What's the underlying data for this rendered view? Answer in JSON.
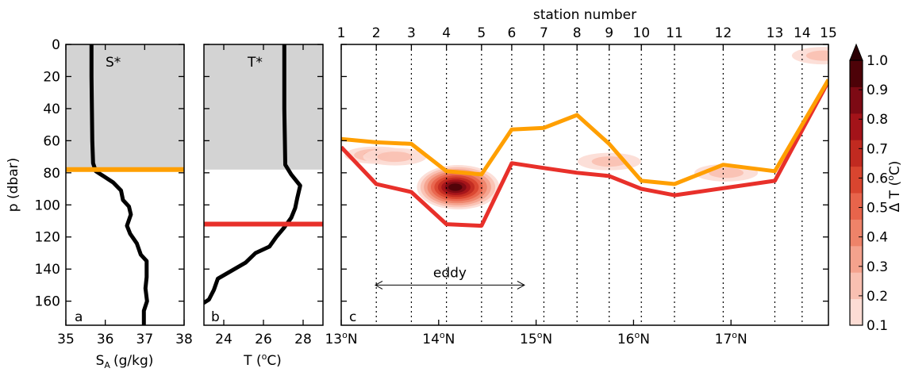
{
  "chart_data": [
    {
      "panel": "a",
      "type": "line",
      "title_letter": "a",
      "annotation": "S*",
      "xlabel_main": "S",
      "xlabel_sub": "A",
      "xlabel_unit": "(g/kg)",
      "ylabel": "p (dbar)",
      "xlim": [
        35,
        38
      ],
      "ylim": [
        175,
        0
      ],
      "xticks": [
        "35",
        "36",
        "37",
        "38"
      ],
      "yticks": [
        "0",
        "20",
        "40",
        "60",
        "80",
        "100",
        "120",
        "140",
        "160"
      ],
      "shaded_top_to": 78,
      "hline": {
        "p": 78,
        "color": "#ff9f00"
      },
      "series": [
        {
          "color": "#000000",
          "points": [
            [
              35.65,
              0
            ],
            [
              35.65,
              20
            ],
            [
              35.66,
              40
            ],
            [
              35.67,
              60
            ],
            [
              35.69,
              74
            ],
            [
              35.76,
              79
            ],
            [
              35.95,
              82
            ],
            [
              36.2,
              86
            ],
            [
              36.4,
              91
            ],
            [
              36.45,
              97
            ],
            [
              36.6,
              101
            ],
            [
              36.65,
              106
            ],
            [
              36.55,
              113
            ],
            [
              36.63,
              118
            ],
            [
              36.8,
              124
            ],
            [
              36.9,
              131
            ],
            [
              37.05,
              135
            ],
            [
              37.05,
              145
            ],
            [
              37.02,
              152
            ],
            [
              37.06,
              160
            ],
            [
              36.98,
              166
            ],
            [
              36.98,
              175
            ]
          ]
        }
      ]
    },
    {
      "panel": "b",
      "type": "line",
      "title_letter": "b",
      "annotation": "T*",
      "xlabel_main": "T (",
      "xlabel_sup": "o",
      "xlabel_unit": "C)",
      "xlim": [
        23,
        29
      ],
      "ylim": [
        175,
        0
      ],
      "xticks": [
        "24",
        "26",
        "28"
      ],
      "yticks": [
        "0",
        "20",
        "40",
        "60",
        "80",
        "100",
        "120",
        "140",
        "160"
      ],
      "shaded_top_to": 78,
      "hline": {
        "p": 112,
        "color": "#e8302a"
      },
      "series": [
        {
          "color": "#000000",
          "points": [
            [
              27.05,
              0
            ],
            [
              27.05,
              20
            ],
            [
              27.05,
              40
            ],
            [
              27.08,
              60
            ],
            [
              27.1,
              75
            ],
            [
              27.4,
              81
            ],
            [
              27.85,
              88
            ],
            [
              27.7,
              96
            ],
            [
              27.6,
              102
            ],
            [
              27.4,
              108
            ],
            [
              27.05,
              114
            ],
            [
              26.65,
              120
            ],
            [
              26.3,
              126
            ],
            [
              25.6,
              130
            ],
            [
              25.1,
              136
            ],
            [
              24.4,
              141
            ],
            [
              23.7,
              146
            ],
            [
              23.5,
              153
            ],
            [
              23.25,
              159
            ],
            [
              23.0,
              161
            ]
          ]
        }
      ]
    },
    {
      "panel": "c",
      "type": "heatmap",
      "title_letter": "c",
      "top_axis_label": "station number",
      "stations": [
        "1",
        "2",
        "3",
        "4",
        "5",
        "6",
        "7",
        "8",
        "9",
        "10",
        "11",
        "12",
        "13",
        "14",
        "15"
      ],
      "station_lat": [
        13.0,
        13.36,
        13.72,
        14.08,
        14.44,
        14.75,
        15.08,
        15.42,
        15.75,
        16.08,
        16.42,
        16.92,
        17.45,
        17.73,
        18.0
      ],
      "xlim": [
        13.0,
        18.0
      ],
      "ylim": [
        175,
        0
      ],
      "xticks": [
        "13°N",
        "14°N",
        "15°N",
        "16°N",
        "17°N"
      ],
      "xtick_main": [
        "13",
        "14",
        "15",
        "16",
        "17"
      ],
      "xtick_sup": "o",
      "xtick_suffix": "N",
      "eddy_label": "eddy",
      "eddy_range": [
        13.35,
        14.88
      ],
      "eddy_p": 150,
      "mixed_layer_orange": [
        59,
        61,
        62,
        79,
        81,
        53,
        52,
        44,
        62,
        85,
        87,
        75,
        79,
        null,
        22
      ],
      "thermocline_red": [
        64,
        87,
        92,
        112,
        113,
        74,
        77,
        80,
        82,
        90,
        94,
        null,
        85,
        null,
        23
      ],
      "orange_color": "#ff9f00",
      "red_color": "#e8302a",
      "colorbar": {
        "label_main": "Δ T (",
        "label_sup": "o",
        "label_unit": "C)",
        "ticks": [
          "0.1",
          "0.2",
          "0.3",
          "0.4",
          "0.5",
          "0.6",
          "0.7",
          "0.8",
          "0.9",
          "1.0"
        ],
        "colors": [
          "#fcdcd4",
          "#f9c0b1",
          "#f4a28d",
          "#ee8369",
          "#e8644b",
          "#d9452f",
          "#c12a20",
          "#a31319",
          "#7d0a14",
          "#4d0208"
        ]
      },
      "anomaly_blobs": [
        {
          "lat": 13.36,
          "p": 69,
          "value": 0.25
        },
        {
          "lat": 13.55,
          "p": 70,
          "value": 0.15
        },
        {
          "lat": 14.2,
          "p": 89,
          "value": 0.95
        },
        {
          "lat": 15.75,
          "p": 73,
          "value": 0.2
        },
        {
          "lat": 16.95,
          "p": 80,
          "value": 0.15
        },
        {
          "lat": 17.95,
          "p": 7,
          "value": 0.2
        }
      ]
    }
  ]
}
